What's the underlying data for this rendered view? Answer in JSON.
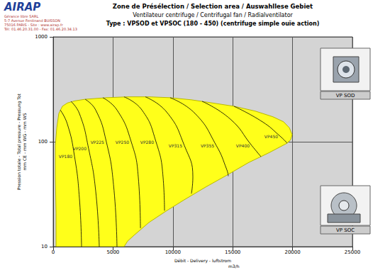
{
  "page": {
    "logo": "AIRAP",
    "address": [
      "Gérance libre SARL",
      "5-7 Avenue Ferdinand BUISSON",
      "75016 PARIS - Site : www.airap.fr",
      "Tél: 01.46.20.31.00 - Fax: 01.46.20.34.13"
    ],
    "pictures": [
      "VP SOD",
      "VP SOC"
    ]
  },
  "chart_data": {
    "type": "area",
    "title": "Zone de Présélection / Selection area / Auswahllese Gebiet",
    "subtitle": [
      "Ventilateur centrifuge / Centrifugal fan / Radialventilator",
      "Type : VPSOD et VPSOC (180 - 450) (centrifuge simple ouïe action)"
    ],
    "xlabel": "Débit - Delivery - luftstrom",
    "x_unit": "m3/h",
    "ylabel": [
      "Pression totale - Total pressure - Pressung Tot",
      "mm CE - mm WG - mm WS"
    ],
    "xlim": [
      0,
      25000
    ],
    "xticks": [
      0,
      5000,
      10000,
      15000,
      20000,
      25000
    ],
    "ylim": [
      10,
      1000
    ],
    "yticks": [
      10,
      100,
      1000
    ],
    "log": "y",
    "grid": true,
    "color": "#ffff1a",
    "envelope": {
      "x": [
        240,
        240,
        180,
        180,
        300,
        470,
        770,
        1180,
        1780,
        2670,
        4440,
        6220,
        8000,
        9770,
        11550,
        13330,
        15100,
        16880,
        18360,
        19250,
        19730,
        19960,
        19850,
        19550,
        18070,
        16290,
        14510,
        12740,
        10960,
        9480,
        8000,
        6810,
        6220,
        5920
      ],
      "values": [
        10,
        21,
        46,
        92,
        136,
        186,
        218,
        234,
        245,
        254,
        263,
        268,
        268,
        263,
        251,
        234,
        218,
        196,
        173,
        155,
        136,
        117,
        105,
        97,
        79,
        63,
        48,
        37,
        28,
        22,
        17,
        13,
        11.3,
        10
      ]
    },
    "series": [
      {
        "name": "VP180",
        "type": "line",
        "color": "#000000",
        "x": [
          590,
          1180,
          1780,
          2190,
          2370
        ],
        "values": [
          201,
          148,
          73,
          29,
          10
        ]
      },
      {
        "name": "VP200",
        "type": "line",
        "color": "#000000",
        "x": [
          1480,
          2190,
          2960,
          3550,
          3850
        ],
        "values": [
          243,
          186,
          86,
          34,
          10
        ]
      },
      {
        "name": "VP225",
        "type": "line",
        "color": "#000000",
        "x": [
          2670,
          3550,
          4440,
          5040,
          5330
        ],
        "values": [
          254,
          201,
          100,
          39,
          10
        ]
      },
      {
        "name": "VP250",
        "type": "line",
        "color": "#000000",
        "x": [
          4150,
          5330,
          6520,
          7110,
          7290
        ],
        "values": [
          263,
          201,
          100,
          46,
          15
        ]
      },
      {
        "name": "VP280",
        "type": "line",
        "color": "#000000",
        "x": [
          5920,
          7410,
          8590,
          9180,
          9300
        ],
        "values": [
          268,
          201,
          100,
          46,
          22
        ]
      },
      {
        "name": "VP315",
        "type": "line",
        "color": "#000000",
        "x": [
          7700,
          9480,
          10960,
          11670,
          11550
        ],
        "values": [
          268,
          192,
          92,
          46,
          32
        ]
      },
      {
        "name": "VP355",
        "type": "line",
        "color": "#000000",
        "x": [
          9770,
          11850,
          13630,
          14510,
          14630
        ],
        "values": [
          263,
          186,
          92,
          54,
          47
        ]
      },
      {
        "name": "VP400",
        "type": "line",
        "color": "#000000",
        "x": [
          12440,
          14810,
          16590,
          17360
        ],
        "values": [
          243,
          164,
          92,
          72
        ]
      },
      {
        "name": "VP450",
        "type": "line",
        "color": "#000000",
        "x": [
          15100,
          17480,
          18960,
          19550
        ],
        "values": [
          218,
          155,
          113,
          97
        ]
      }
    ]
  }
}
